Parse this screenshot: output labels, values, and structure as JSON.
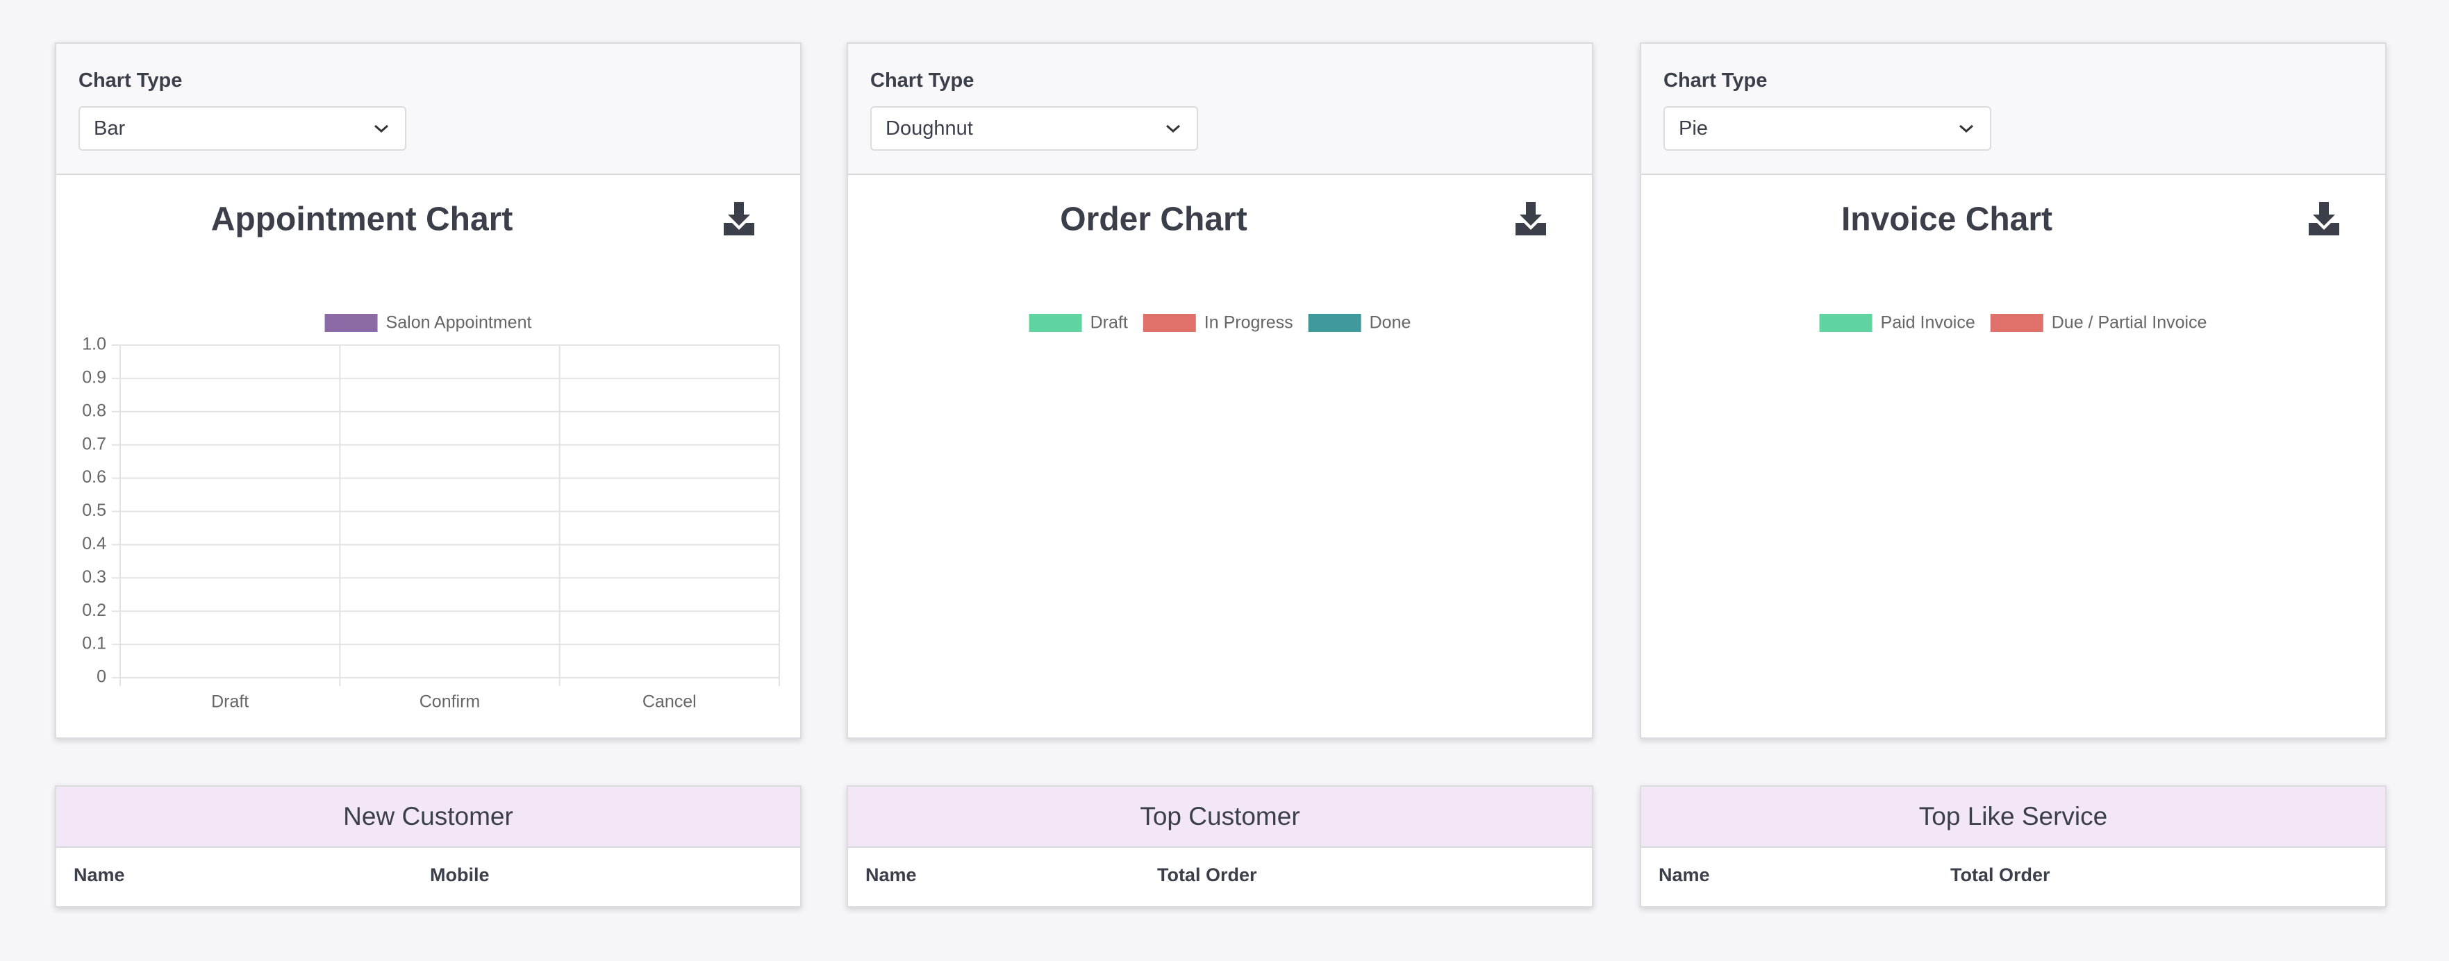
{
  "cards": [
    {
      "label": "Chart Type",
      "selected": "Bar",
      "chart": {
        "type": "bar",
        "title": "Appointment Chart",
        "categories": [
          "Draft",
          "Confirm",
          "Cancel"
        ],
        "series": [
          {
            "name": "Salon Appointment",
            "color": "#8c6aa6",
            "values": [
              0,
              0,
              0
            ]
          }
        ],
        "ylim": [
          0,
          1
        ],
        "yticks": [
          0,
          0.1,
          0.2,
          0.3,
          0.4,
          0.5,
          0.6,
          0.7,
          0.8,
          0.9,
          {
            "value": 1,
            "label": "1.0"
          }
        ],
        "grid": true
      }
    },
    {
      "label": "Chart Type",
      "selected": "Doughnut",
      "chart": {
        "type": "doughnut",
        "title": "Order Chart",
        "categories": [
          "Draft",
          "In Progress",
          "Done"
        ],
        "colors": [
          "#5fd3a0",
          "#e0706a",
          "#3f9a9c"
        ],
        "values": [
          0,
          0,
          0
        ]
      }
    },
    {
      "label": "Chart Type",
      "selected": "Pie",
      "chart": {
        "type": "pie",
        "title": "Invoice Chart",
        "categories": [
          "Paid Invoice",
          "Due / Partial Invoice"
        ],
        "colors": [
          "#5fd3a0",
          "#e0706a"
        ],
        "values": [
          0,
          0
        ]
      }
    }
  ],
  "tables": [
    {
      "title": "New Customer",
      "columns": [
        "Name",
        "Mobile"
      ]
    },
    {
      "title": "Top Customer",
      "columns": [
        "Name",
        "Total Order"
      ]
    },
    {
      "title": "Top Like Service",
      "columns": [
        "Name",
        "Total Order"
      ]
    }
  ]
}
